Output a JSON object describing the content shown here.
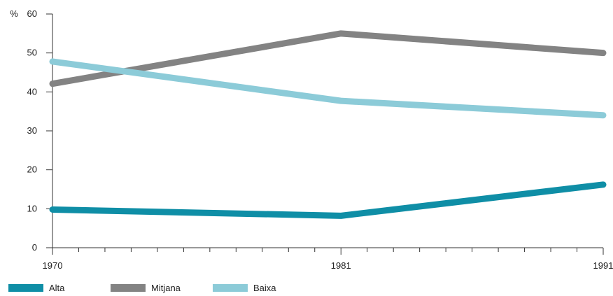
{
  "chart_data": {
    "type": "line",
    "title": "",
    "xlabel": "",
    "ylabel": "%",
    "categories": [
      "1970",
      "1981",
      "1991"
    ],
    "x_range": [
      1970,
      1991
    ],
    "ylim": [
      0,
      60
    ],
    "y_ticks": [
      0,
      10,
      20,
      30,
      40,
      50,
      60
    ],
    "grid": false,
    "legend_position": "bottom-left",
    "series": [
      {
        "name": "Alta",
        "color": "#0f8ea6",
        "values": [
          9.8,
          8.2,
          16.2
        ]
      },
      {
        "name": "Mitjana",
        "color": "#838383",
        "values": [
          42.1,
          55.0,
          50.0
        ]
      },
      {
        "name": "Baixa",
        "color": "#8ccbd8",
        "values": [
          47.8,
          37.7,
          34.0
        ]
      }
    ]
  }
}
